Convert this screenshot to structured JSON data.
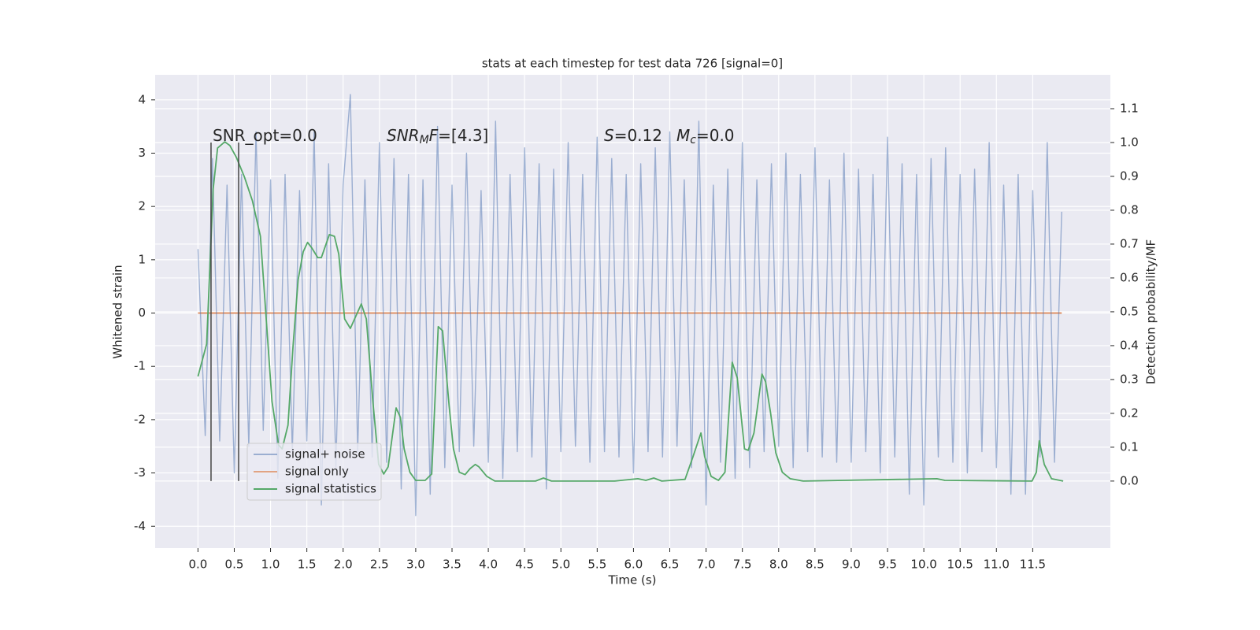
{
  "chart_data": {
    "type": "line",
    "title": "stats at each timestep for test data 726 [signal=0]",
    "xlabel": "Time (s)",
    "ylabel": "Whitened strain",
    "y2label": "Detection probability/MF",
    "xlim": [
      -0.59,
      12.57
    ],
    "ylim": [
      -4.41,
      4.47
    ],
    "y2lim": [
      -0.198,
      1.2
    ],
    "xticks": [
      {
        "value": 0,
        "label": "0.0"
      },
      0.5,
      {
        "value": 1,
        "label": "1.0"
      },
      1.5,
      {
        "value": 2,
        "label": "2.0"
      },
      2.5,
      {
        "value": 3,
        "label": "3.0"
      },
      3.5,
      {
        "value": 4,
        "label": "4.0"
      },
      4.5,
      {
        "value": 5,
        "label": "5.0"
      },
      5.5,
      {
        "value": 6,
        "label": "6.0"
      },
      6.5,
      {
        "value": 7,
        "label": "7.0"
      },
      7.5,
      {
        "value": 8,
        "label": "8.0"
      },
      8.5,
      {
        "value": 9,
        "label": "9.0"
      },
      9.5,
      {
        "value": 10,
        "label": "10.0"
      },
      10.5,
      {
        "value": 11,
        "label": "11.0"
      },
      11.5
    ],
    "yticks": [
      -4,
      -3,
      -2,
      -1,
      0,
      1,
      2,
      3,
      4
    ],
    "y2ticks": [
      {
        "value": 0,
        "label": "0.0"
      },
      0.1,
      0.2,
      0.3,
      0.4,
      0.5,
      0.6,
      0.7,
      0.8,
      0.9,
      {
        "value": 1,
        "label": "1.0"
      },
      1.1
    ],
    "grid": true,
    "legend_loc": "lower left",
    "series": [
      {
        "name": "signal only",
        "color": "#dd8452",
        "legend_order": 1,
        "x": [
          0,
          11.9
        ],
        "values": [
          0,
          0
        ]
      },
      {
        "name": "signal+ noise",
        "color": "#4c72b0",
        "legend_order": 0,
        "x": [
          0,
          0.1,
          0.2,
          0.3,
          0.4,
          0.5,
          0.6,
          0.7,
          0.8,
          0.9,
          1,
          1.1,
          1.2,
          1.3,
          1.4,
          1.5,
          1.6,
          1.7,
          1.8,
          1.9,
          2,
          2.1,
          2.2,
          2.3,
          2.4,
          2.5,
          2.6,
          2.7,
          2.8,
          2.9,
          3,
          3.1,
          3.2,
          3.3,
          3.4,
          3.5,
          3.6,
          3.7,
          3.8,
          3.9,
          4,
          4.1,
          4.2,
          4.3,
          4.4,
          4.5,
          4.6,
          4.7,
          4.8,
          4.9,
          5,
          5.1,
          5.2,
          5.3,
          5.4,
          5.5,
          5.6,
          5.7,
          5.8,
          5.9,
          6,
          6.1,
          6.2,
          6.3,
          6.4,
          6.5,
          6.6,
          6.7,
          6.8,
          6.9,
          7,
          7.1,
          7.2,
          7.3,
          7.4,
          7.5,
          7.6,
          7.7,
          7.8,
          7.9,
          8,
          8.1,
          8.2,
          8.3,
          8.4,
          8.5,
          8.6,
          8.7,
          8.8,
          8.9,
          9,
          9.1,
          9.2,
          9.3,
          9.4,
          9.5,
          9.6,
          9.7,
          9.8,
          9.9,
          10,
          10.1,
          10.2,
          10.3,
          10.4,
          10.5,
          10.6,
          10.7,
          10.8,
          10.9,
          11,
          11.1,
          11.2,
          11.3,
          11.4,
          11.5,
          11.6,
          11.7,
          11.8,
          11.9
        ],
        "values": [
          1.2,
          -2.3,
          2.9,
          -2.4,
          2.4,
          -3.0,
          2.6,
          -2.5,
          3.4,
          -2.2,
          2.5,
          -3.1,
          2.6,
          -2.6,
          2.3,
          -2.4,
          3.4,
          -3.6,
          2.8,
          -2.9,
          2.4,
          4.1,
          -2.6,
          2.5,
          -2.7,
          3.2,
          -2.8,
          2.9,
          -3.3,
          2.6,
          -3.8,
          2.5,
          -3.4,
          3.5,
          -2.9,
          2.4,
          -2.6,
          3.0,
          -2.5,
          2.3,
          -2.8,
          3.6,
          -3.1,
          2.6,
          -2.6,
          3.1,
          -2.7,
          2.8,
          -3.3,
          2.7,
          -2.6,
          3.2,
          -2.5,
          2.6,
          -2.8,
          3.3,
          -2.6,
          2.9,
          -2.7,
          2.6,
          -3.0,
          2.8,
          -2.6,
          3.1,
          -2.7,
          3.4,
          -2.5,
          2.5,
          -2.9,
          3.6,
          -3.6,
          2.4,
          -2.8,
          2.7,
          -3.1,
          3.2,
          -2.9,
          2.5,
          -2.6,
          2.8,
          -2.5,
          3.0,
          -2.9,
          2.6,
          -2.6,
          3.1,
          -2.7,
          2.5,
          -2.8,
          3.0,
          -2.8,
          2.7,
          -2.6,
          2.6,
          -3.0,
          3.3,
          -2.7,
          2.8,
          -3.4,
          2.6,
          -3.6,
          2.9,
          -2.7,
          3.1,
          -2.8,
          2.6,
          -3.0,
          2.7,
          -2.6,
          3.2,
          -2.9,
          2.4,
          -3.4,
          2.6,
          -3.4,
          2.3,
          -2.7,
          3.2,
          -2.8,
          1.9
        ]
      },
      {
        "name": "signal statistics",
        "color": "#55a868",
        "axis": "y2",
        "legend_order": 2,
        "x": [
          0,
          0.12,
          0.21,
          0.27,
          0.37,
          0.44,
          0.53,
          0.64,
          0.75,
          0.86,
          1.02,
          1.11,
          1.16,
          1.24,
          1.31,
          1.38,
          1.45,
          1.51,
          1.57,
          1.65,
          1.7,
          1.81,
          1.88,
          1.94,
          2.02,
          2.1,
          2.25,
          2.32,
          2.41,
          2.49,
          2.56,
          2.62,
          2.73,
          2.79,
          2.84,
          2.92,
          3,
          3.13,
          3.22,
          3.31,
          3.37,
          3.46,
          3.52,
          3.6,
          3.68,
          3.75,
          3.82,
          3.87,
          3.98,
          4.09,
          4.65,
          4.76,
          4.87,
          5.74,
          6.06,
          6.17,
          6.28,
          6.39,
          6.71,
          6.82,
          6.93,
          6.98,
          7.07,
          7.17,
          7.26,
          7.36,
          7.43,
          7.53,
          7.58,
          7.66,
          7.77,
          7.82,
          7.89,
          7.96,
          8.05,
          8.16,
          8.34,
          10.18,
          10.29,
          11.49,
          11.55,
          11.59,
          11.66,
          11.76,
          11.92
        ],
        "values": [
          0.309,
          0.405,
          0.863,
          0.984,
          1.002,
          0.991,
          0.956,
          0.898,
          0.828,
          0.723,
          0.235,
          0.107,
          0.095,
          0.165,
          0.398,
          0.595,
          0.677,
          0.705,
          0.688,
          0.66,
          0.66,
          0.728,
          0.723,
          0.67,
          0.479,
          0.451,
          0.523,
          0.479,
          0.235,
          0.049,
          0.021,
          0.042,
          0.216,
          0.188,
          0.095,
          0.026,
          0.002,
          0.002,
          0.021,
          0.456,
          0.444,
          0.223,
          0.095,
          0.026,
          0.019,
          0.037,
          0.049,
          0.042,
          0.014,
          0,
          0,
          0.009,
          0,
          0,
          0.007,
          0.002,
          0.009,
          0,
          0.005,
          0.072,
          0.142,
          0.072,
          0.014,
          0.002,
          0.026,
          0.351,
          0.305,
          0.095,
          0.091,
          0.142,
          0.316,
          0.293,
          0.2,
          0.084,
          0.026,
          0.007,
          0,
          0.007,
          0.002,
          0,
          0.026,
          0.119,
          0.049,
          0.007,
          0
        ]
      }
    ],
    "vlines": {
      "x": [
        0.18,
        0.56
      ],
      "y2range": [
        0,
        1.0
      ],
      "color": "#444444"
    },
    "annotations": [
      [
        {
          "text": "SNR_opt=0.0"
        }
      ],
      [
        {
          "text": "SNR",
          "style": "italic"
        },
        {
          "text": "M",
          "style": "italic-sub"
        },
        {
          "text": "F",
          "style": "italic"
        },
        {
          "text": "=[4.3]"
        }
      ],
      [
        {
          "text": "S",
          "style": "italic"
        },
        {
          "text": "=0.12"
        }
      ],
      [
        {
          "text": "M",
          "style": "italic"
        },
        {
          "text": "c",
          "style": "italic-sub"
        },
        {
          "text": "=0.0"
        }
      ]
    ]
  }
}
